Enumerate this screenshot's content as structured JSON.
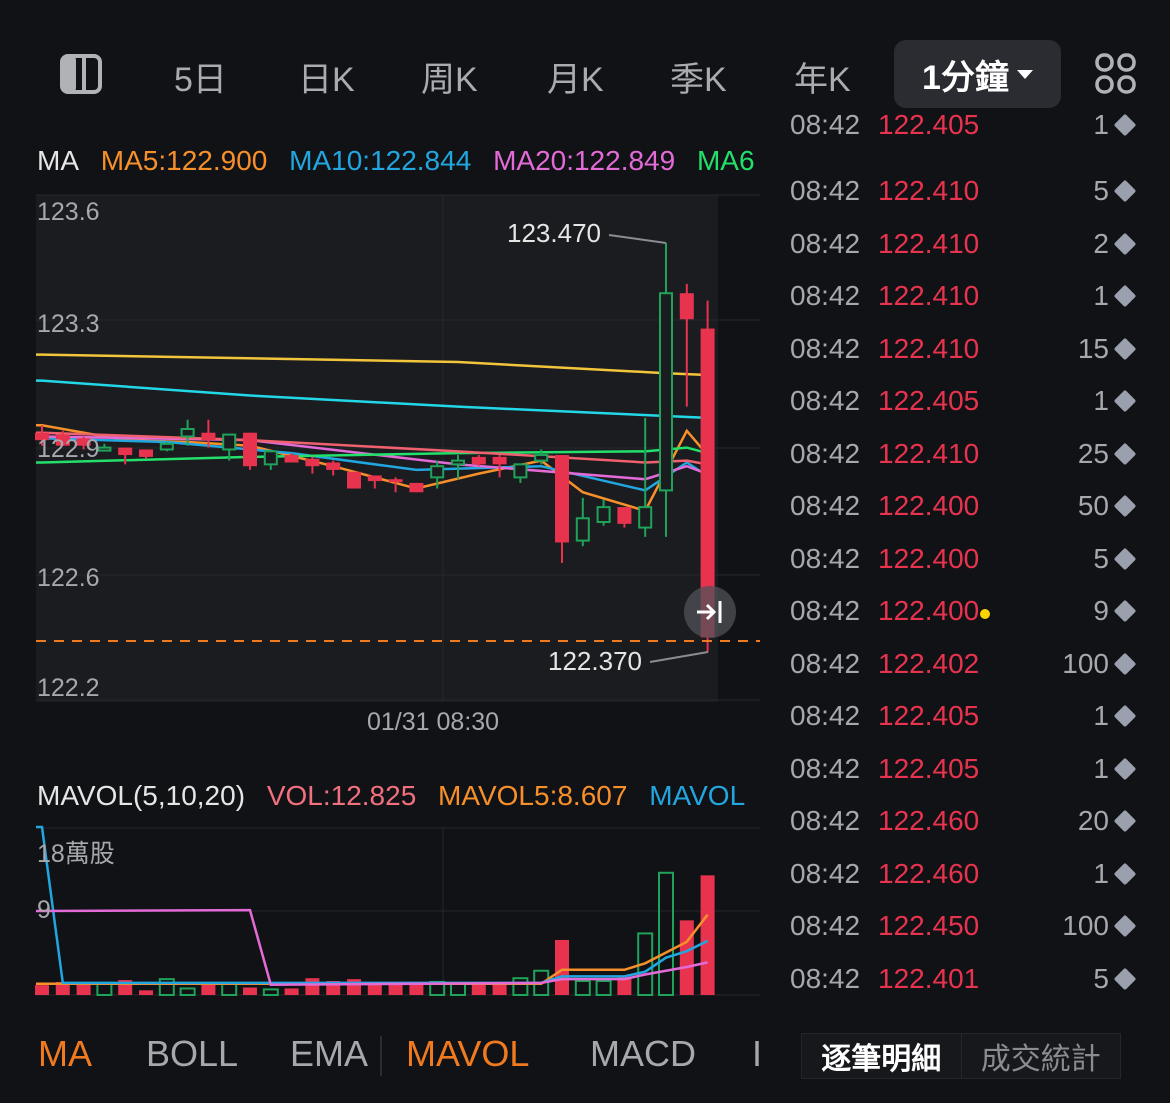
{
  "toolbar": {
    "periods": [
      "5日",
      "日K",
      "周K",
      "月K",
      "季K",
      "年K"
    ],
    "active_period": "1分鐘",
    "sidebar_icon": "sidebar-toggle-icon",
    "grid_icon": "grid-layout-icon"
  },
  "ma_legend": {
    "title": "MA",
    "items": [
      {
        "label": "MA5:122.900",
        "color": "#f7902a"
      },
      {
        "label": "MA10:122.844",
        "color": "#22a6e0"
      },
      {
        "label": "MA20:122.849",
        "color": "#e36bd8"
      },
      {
        "label": "MA6",
        "color": "#22e06a"
      }
    ]
  },
  "vol_legend": {
    "title": "MAVOL(5,10,20)",
    "items": [
      {
        "label": "VOL:12.825",
        "color": "#f0707e"
      },
      {
        "label": "MAVOL5:8.607",
        "color": "#f7902a"
      },
      {
        "label": "MAVOL",
        "color": "#22a6e0"
      }
    ]
  },
  "chart_data": [
    {
      "type": "candlestick",
      "y_ticks": [
        "123.6",
        "123.3",
        "122.9",
        "122.6",
        "122.2"
      ],
      "x_tick": "01/31 08:30",
      "high_annotation": "123.470",
      "low_annotation": "122.370",
      "up_color": "#1fa35a",
      "down_color": "#e8334f",
      "current_price_line": 122.4,
      "candles": [
        [
          122.96,
          122.98,
          122.925,
          122.94
        ],
        [
          122.955,
          122.965,
          122.925,
          122.925
        ],
        [
          122.945,
          122.95,
          122.915,
          122.925
        ],
        [
          122.915,
          122.93,
          122.91,
          122.92
        ],
        [
          122.92,
          122.92,
          122.875,
          122.9
        ],
        [
          122.915,
          122.915,
          122.89,
          122.895
        ],
        [
          122.915,
          122.935,
          122.91,
          122.93
        ],
        [
          122.95,
          122.995,
          122.925,
          122.97
        ],
        [
          122.96,
          122.995,
          122.92,
          122.94
        ],
        [
          122.915,
          122.955,
          122.885,
          122.955
        ],
        [
          122.96,
          122.96,
          122.86,
          122.87
        ],
        [
          122.875,
          122.91,
          122.86,
          122.91
        ],
        [
          122.9,
          122.905,
          122.88,
          122.88
        ],
        [
          122.89,
          122.895,
          122.85,
          122.87
        ],
        [
          122.88,
          122.885,
          122.845,
          122.86
        ],
        [
          122.855,
          122.855,
          122.81,
          122.81
        ],
        [
          122.845,
          122.845,
          122.81,
          122.83
        ],
        [
          122.835,
          122.84,
          122.8,
          122.83
        ],
        [
          122.825,
          122.825,
          122.8,
          122.8
        ],
        [
          122.84,
          122.885,
          122.81,
          122.87
        ],
        [
          122.875,
          122.9,
          122.835,
          122.885
        ],
        [
          122.895,
          122.9,
          122.87,
          122.875
        ],
        [
          122.895,
          122.9,
          122.84,
          122.875
        ],
        [
          122.84,
          122.875,
          122.825,
          122.875
        ],
        [
          122.885,
          122.915,
          122.875,
          122.9
        ],
        [
          122.9,
          122.9,
          122.61,
          122.665
        ],
        [
          122.67,
          122.785,
          122.655,
          122.73
        ],
        [
          122.72,
          122.78,
          122.71,
          122.76
        ],
        [
          122.76,
          122.76,
          122.705,
          122.715
        ],
        [
          122.705,
          123.0,
          122.68,
          122.76
        ],
        [
          122.805,
          123.47,
          122.68,
          123.335
        ],
        [
          123.335,
          123.36,
          123.03,
          123.265
        ],
        [
          123.24,
          123.315,
          122.37,
          122.41
        ]
      ],
      "ma_lines": [
        {
          "name": "MA5",
          "color": "#f7902a",
          "points": [
            [
              0,
              122.98
            ],
            [
              4,
              122.94
            ],
            [
              7,
              122.935
            ],
            [
              10,
              122.925
            ],
            [
              14,
              122.87
            ],
            [
              18,
              122.81
            ],
            [
              21,
              122.85
            ],
            [
              24,
              122.885
            ],
            [
              26,
              122.8
            ],
            [
              29,
              122.75
            ],
            [
              31,
              122.965
            ],
            [
              32,
              122.9
            ]
          ]
        },
        {
          "name": "MA10",
          "color": "#22a6e0",
          "points": [
            [
              0,
              122.945
            ],
            [
              6,
              122.935
            ],
            [
              12,
              122.905
            ],
            [
              18,
              122.86
            ],
            [
              24,
              122.87
            ],
            [
              29,
              122.805
            ],
            [
              31,
              122.88
            ],
            [
              32,
              122.844
            ]
          ]
        },
        {
          "name": "MA20",
          "color": "#e36bd8",
          "points": [
            [
              0,
              122.95
            ],
            [
              10,
              122.94
            ],
            [
              20,
              122.875
            ],
            [
              29,
              122.835
            ],
            [
              31,
              122.87
            ],
            [
              32,
              122.849
            ]
          ]
        },
        {
          "name": "MA6",
          "color": "#22e06a",
          "points": [
            [
              0,
              122.88
            ],
            [
              10,
              122.895
            ],
            [
              20,
              122.905
            ],
            [
              29,
              122.91
            ],
            [
              31,
              122.92
            ],
            [
              32,
              122.905
            ]
          ]
        },
        {
          "color": "#f0606e",
          "points": [
            [
              0,
              122.96
            ],
            [
              10,
              122.94
            ],
            [
              20,
              122.91
            ],
            [
              29,
              122.88
            ],
            [
              31,
              122.885
            ],
            [
              32,
              122.875
            ]
          ]
        },
        {
          "color": "#22d8e8",
          "points": [
            [
              0,
              123.1
            ],
            [
              10,
              123.06
            ],
            [
              20,
              123.03
            ],
            [
              30,
              123.005
            ],
            [
              32,
              123.0
            ]
          ]
        },
        {
          "color": "#f2c53a",
          "points": [
            [
              0,
              123.17
            ],
            [
              20,
              123.15
            ],
            [
              30,
              123.12
            ],
            [
              32,
              123.115
            ]
          ]
        }
      ]
    },
    {
      "type": "bar",
      "y_ticks": [
        "18萬股",
        "9"
      ],
      "unit": "萬股",
      "values": [
        1.06,
        1.4,
        1.2,
        1.3,
        1.6,
        0.5,
        1.7,
        0.7,
        1.2,
        1.3,
        0.8,
        0.6,
        0.7,
        1.8,
        1.5,
        1.7,
        1.3,
        1.3,
        1.4,
        1.4,
        1.2,
        1.4,
        1.4,
        1.8,
        2.6,
        5.9,
        1.5,
        1.5,
        1.9,
        6.6,
        13.1,
        8.0,
        12.825
      ],
      "lines": [
        {
          "name": "MAVOL5",
          "color": "#f7902a",
          "points": [
            [
              0,
              1.2
            ],
            [
              24,
              1.2
            ],
            [
              25,
              2.7
            ],
            [
              28,
              2.7
            ],
            [
              29,
              3.4
            ],
            [
              31,
              5.7
            ],
            [
              32,
              8.607
            ]
          ]
        },
        {
          "color": "#22a6e0",
          "points": [
            [
              0,
              18
            ],
            [
              1,
              1.3
            ],
            [
              24,
              1.3
            ],
            [
              25,
              2.0
            ],
            [
              28,
              2.0
            ],
            [
              29,
              2.5
            ],
            [
              30,
              4.0
            ],
            [
              31,
              4.7
            ],
            [
              32,
              5.8
            ]
          ]
        },
        {
          "color": "#e36bd8",
          "points": [
            [
              0,
              9
            ],
            [
              10,
              9.1
            ],
            [
              11,
              1.1
            ],
            [
              24,
              1.3
            ],
            [
              25,
              1.7
            ],
            [
              28,
              1.7
            ],
            [
              29,
              2.2
            ],
            [
              31,
              3.0
            ],
            [
              32,
              3.5
            ]
          ]
        }
      ]
    }
  ],
  "trades": {
    "partial_row": {
      "time": "08:42",
      "price": "122.405",
      "qty": "1"
    },
    "rows": [
      {
        "time": "08:42",
        "price": "122.410",
        "qty": "5"
      },
      {
        "time": "08:42",
        "price": "122.410",
        "qty": "2"
      },
      {
        "time": "08:42",
        "price": "122.410",
        "qty": "1"
      },
      {
        "time": "08:42",
        "price": "122.410",
        "qty": "15"
      },
      {
        "time": "08:42",
        "price": "122.405",
        "qty": "1"
      },
      {
        "time": "08:42",
        "price": "122.410",
        "qty": "25"
      },
      {
        "time": "08:42",
        "price": "122.400",
        "qty": "50"
      },
      {
        "time": "08:42",
        "price": "122.400",
        "qty": "5"
      },
      {
        "time": "08:42",
        "price": "122.400",
        "qty": "9",
        "marker": true
      },
      {
        "time": "08:42",
        "price": "122.402",
        "qty": "100"
      },
      {
        "time": "08:42",
        "price": "122.405",
        "qty": "1"
      },
      {
        "time": "08:42",
        "price": "122.405",
        "qty": "1"
      },
      {
        "time": "08:42",
        "price": "122.460",
        "qty": "20"
      },
      {
        "time": "08:42",
        "price": "122.460",
        "qty": "1"
      },
      {
        "time": "08:42",
        "price": "122.450",
        "qty": "100"
      },
      {
        "time": "08:42",
        "price": "122.401",
        "qty": "5"
      }
    ]
  },
  "indicator_tabs": [
    {
      "label": "MA",
      "active": true
    },
    {
      "label": "BOLL",
      "active": false
    },
    {
      "label": "EMA",
      "active": false
    },
    {
      "label": "MAVOL",
      "active": true
    },
    {
      "label": "MACD",
      "active": false
    },
    {
      "label": "I",
      "active": false
    }
  ],
  "detail_tabs": [
    {
      "label": "逐筆明細",
      "active": true
    },
    {
      "label": "成交統計",
      "active": false
    }
  ]
}
